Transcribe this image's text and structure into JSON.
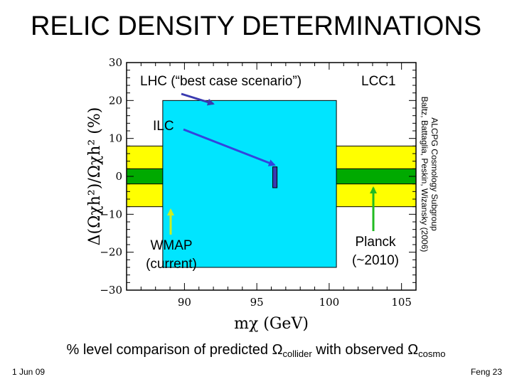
{
  "slide": {
    "title": "RELIC DENSITY DETERMINATIONS",
    "caption_pre": "% level comparison of predicted ",
    "omega": "Ω",
    "collider": "collider",
    "caption_mid": " with observed ",
    "cosmo": "cosmo",
    "date": "1 Jun 09",
    "author_page": "Feng  23"
  },
  "chart_data": {
    "type": "area",
    "x_label": "mχ  (GeV)",
    "y_label": "Δ(Ωχh²)/Ωχh²  (%)",
    "xlim": [
      86,
      106
    ],
    "ylim": [
      -30,
      30
    ],
    "x_ticks": [
      90,
      95,
      100,
      105
    ],
    "y_ticks": [
      -30,
      -20,
      -10,
      0,
      10,
      20,
      30
    ],
    "x_tick_labels": [
      "90",
      "95",
      "100",
      "105"
    ],
    "y_tick_labels": [
      "−30",
      "−20",
      "−10",
      "0",
      "10",
      "20",
      "30"
    ],
    "regions": [
      {
        "name": "WMAP (current)",
        "color": "#ffff00",
        "x": [
          86,
          106
        ],
        "y": [
          -8,
          8
        ]
      },
      {
        "name": "Planck (~2010)",
        "color": "#00aa00",
        "x": [
          86,
          106
        ],
        "y": [
          -2,
          2
        ]
      },
      {
        "name": "LHC",
        "color": "#00e5ff",
        "x": [
          88.5,
          100.5
        ],
        "y": [
          -24,
          20
        ]
      },
      {
        "name": "ILC",
        "color": "#3a3ab0",
        "x": [
          96.1,
          96.4
        ],
        "y": [
          -3,
          2.5
        ]
      }
    ],
    "annotations": {
      "lhc": "LHC (“best case scenario”)",
      "lcc1": "LCC1",
      "ilc": "ILC",
      "wmap_line1": "WMAP",
      "wmap_line2": "(current)",
      "planck_line1": "Planck",
      "planck_line2": "(~2010)",
      "ref_line1": "ALCPG Cosmology Subgroup",
      "ref_line2": "Baltz, Battaglia, Peskin, Wizansky (2006)"
    },
    "colors": {
      "arrow": "#3a3ab0",
      "planck_arrow": "#22bb22",
      "wmap_arrow": "#ccee22",
      "ilc_arrow": "#3344dd"
    }
  }
}
